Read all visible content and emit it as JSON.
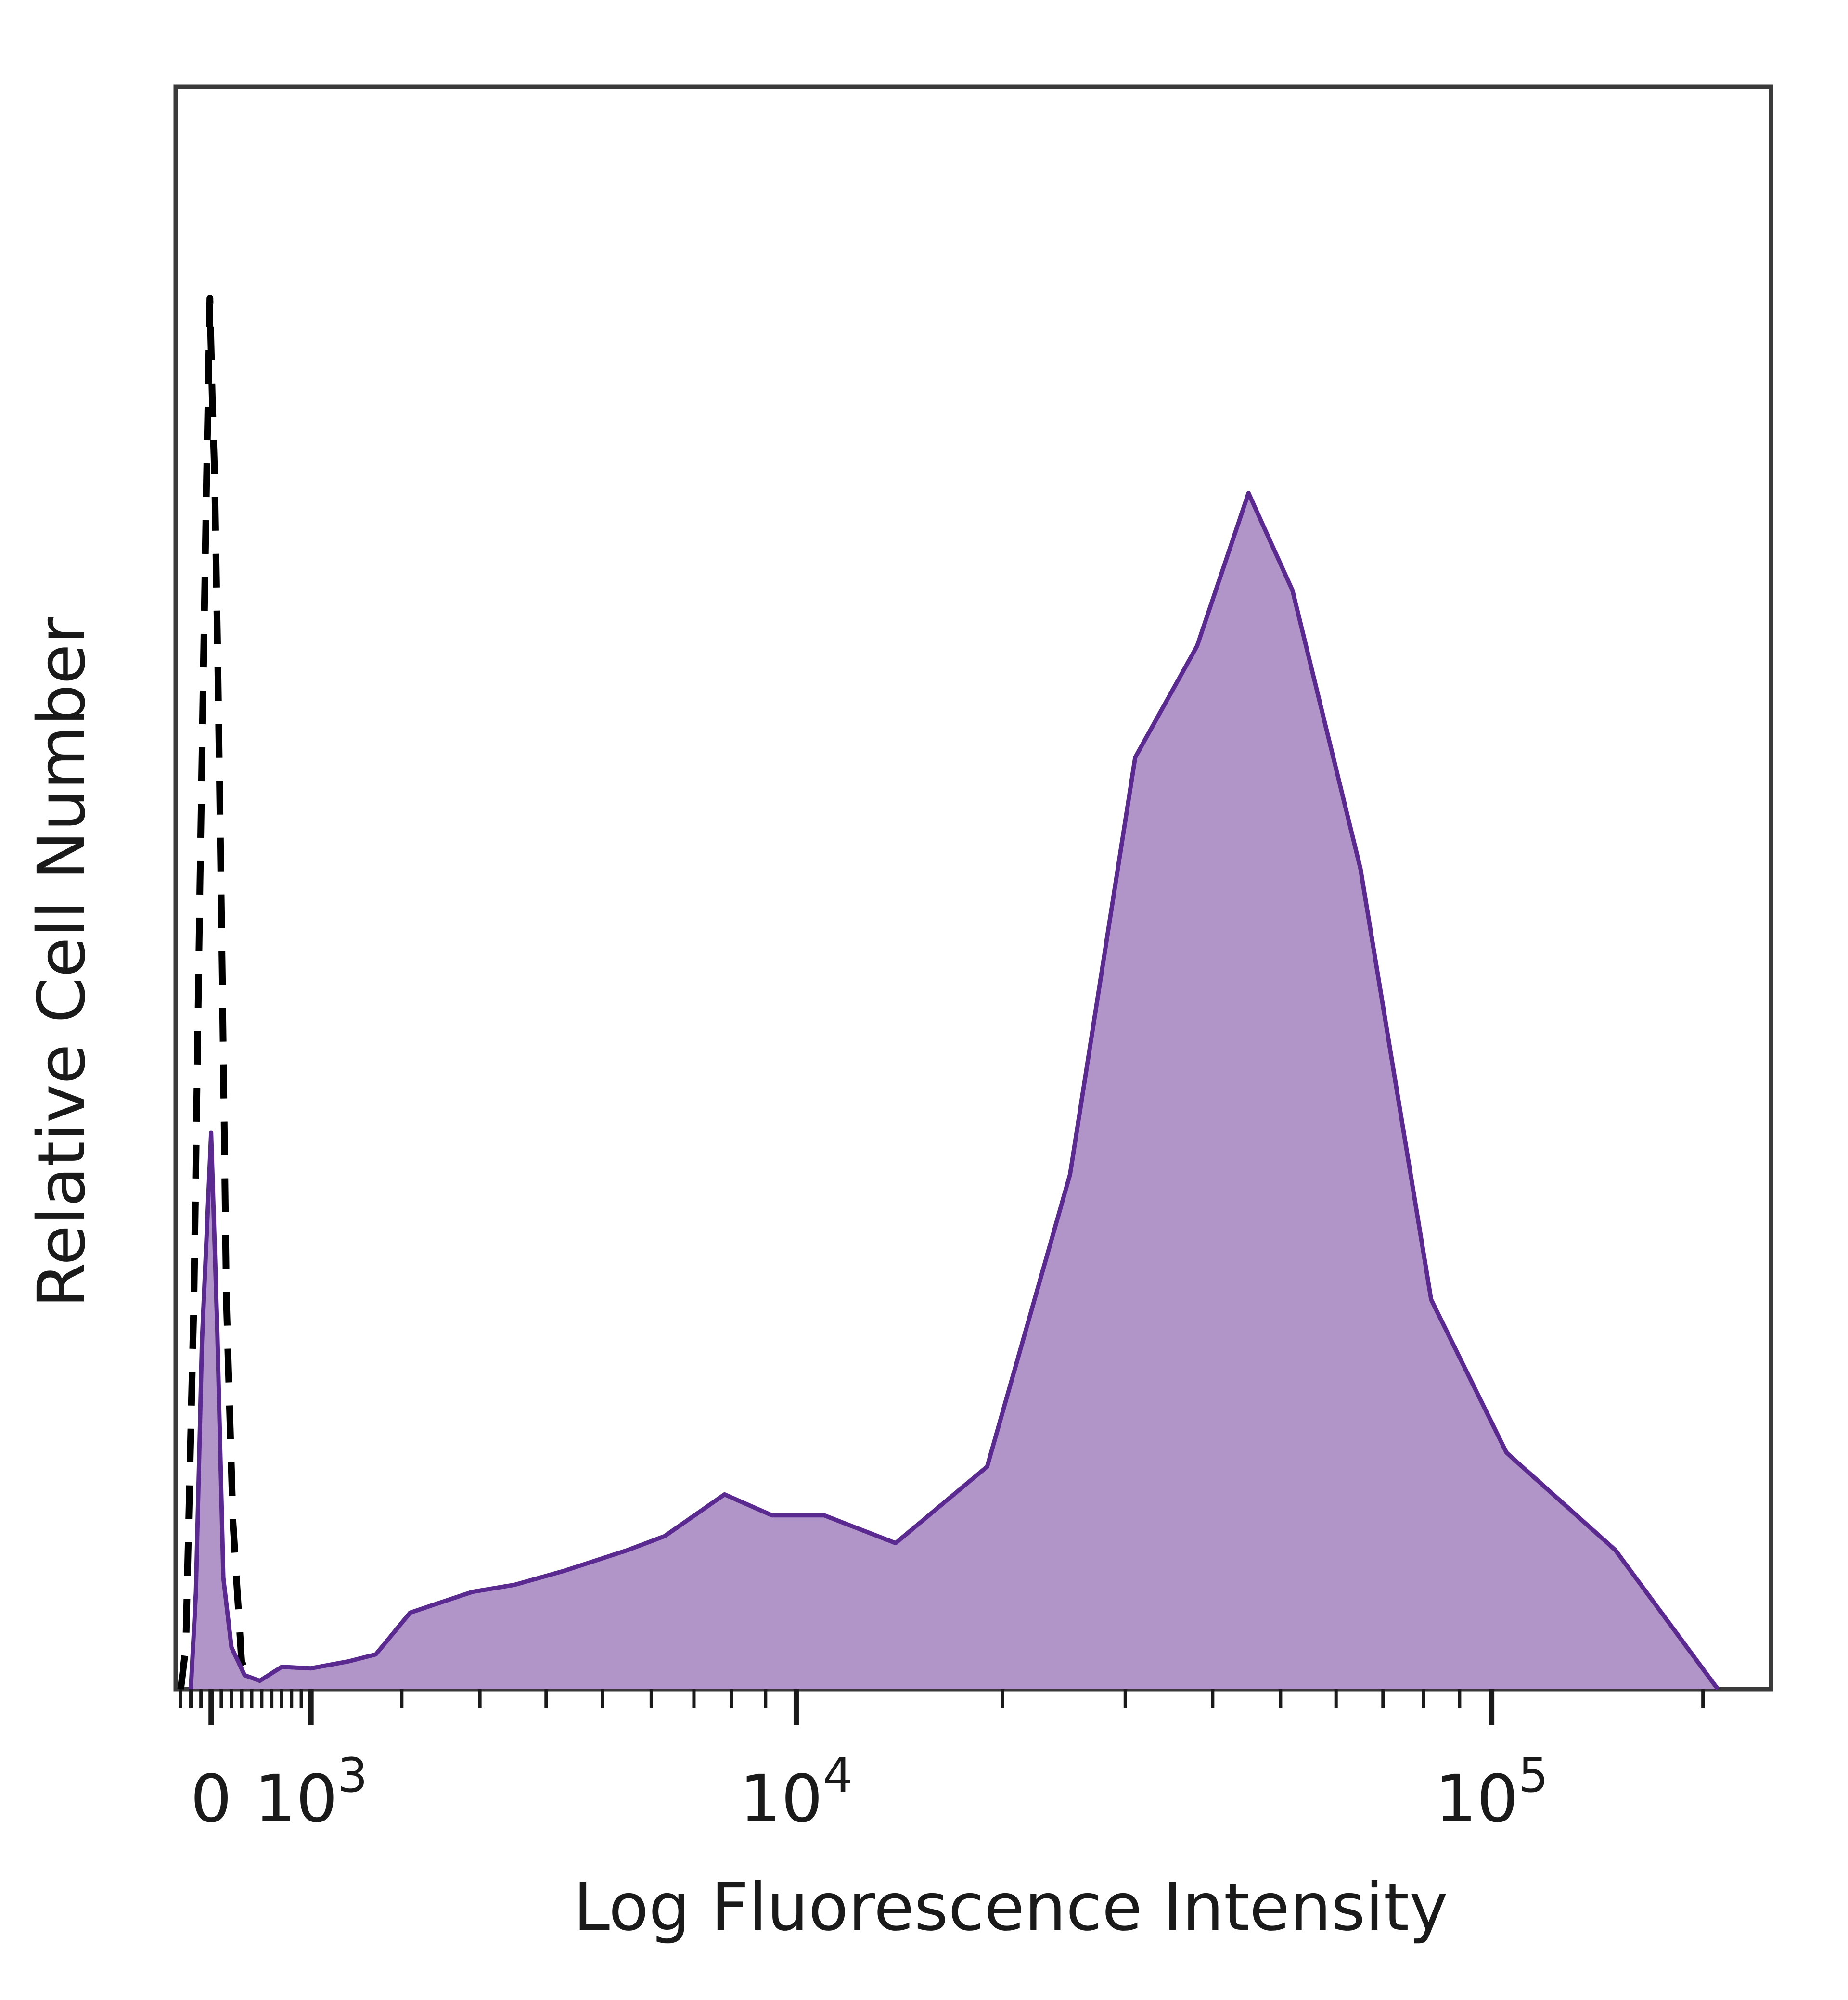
{
  "chart_data": {
    "type": "area",
    "title": "",
    "xlabel": "Log Fluorescence Intensity",
    "ylabel": "Relative Cell Number",
    "x_scale": "biexponential",
    "xlim": [
      -350,
      250000
    ],
    "ylim": [
      0,
      100
    ],
    "grid": false,
    "legend": "none",
    "x_ticks": [
      {
        "value": 0,
        "label": "0"
      },
      {
        "value": 1000,
        "label": "10",
        "exp": "3"
      },
      {
        "value": 10000,
        "label": "10",
        "exp": "4"
      },
      {
        "value": 100000,
        "label": "10",
        "exp": "5"
      }
    ],
    "series": [
      {
        "style": "dashed-outline",
        "color": "#000000",
        "points": [
          [
            -300,
            0
          ],
          [
            -250,
            3
          ],
          [
            -170,
            28
          ],
          [
            -110,
            58
          ],
          [
            -45,
            87
          ],
          [
            -12,
            100
          ],
          [
            10,
            93
          ],
          [
            35,
            87
          ],
          [
            65,
            74
          ],
          [
            110,
            51
          ],
          [
            150,
            28
          ],
          [
            215,
            12
          ],
          [
            300,
            2
          ],
          [
            420,
            0
          ]
        ]
      },
      {
        "style": "filled",
        "color": "#5b2a91",
        "fill": "#b195c8",
        "points": [
          [
            -200,
            0
          ],
          [
            -150,
            7
          ],
          [
            -90,
            25
          ],
          [
            0,
            40
          ],
          [
            60,
            26
          ],
          [
            120,
            8
          ],
          [
            200,
            3
          ],
          [
            330,
            1
          ],
          [
            480,
            0.6
          ],
          [
            700,
            1.6
          ],
          [
            1000,
            1.5
          ],
          [
            1400,
            2
          ],
          [
            1700,
            2.5
          ],
          [
            2100,
            5.5
          ],
          [
            2900,
            7
          ],
          [
            3500,
            7.5
          ],
          [
            4300,
            8.5
          ],
          [
            5500,
            10
          ],
          [
            6300,
            11
          ],
          [
            7800,
            14
          ],
          [
            9200,
            12.5
          ],
          [
            11000,
            12.5
          ],
          [
            14000,
            10.5
          ],
          [
            19000,
            16
          ],
          [
            25000,
            37
          ],
          [
            31000,
            67
          ],
          [
            38000,
            75
          ],
          [
            45000,
            86
          ],
          [
            52000,
            79
          ],
          [
            65000,
            59
          ],
          [
            82000,
            28
          ],
          [
            105000,
            17
          ],
          [
            150000,
            10
          ],
          [
            210000,
            0
          ]
        ]
      }
    ]
  }
}
